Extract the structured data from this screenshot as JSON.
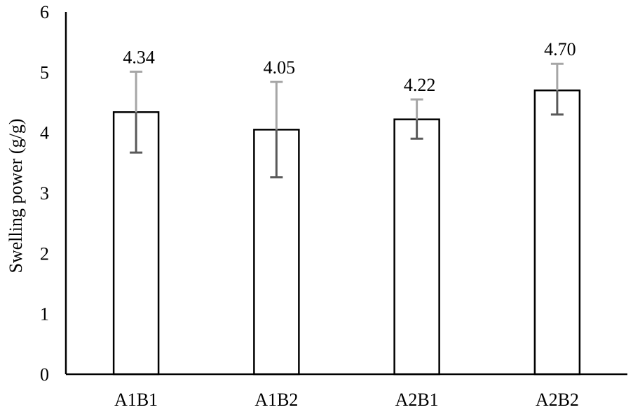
{
  "chart_data": {
    "type": "bar",
    "title": "",
    "xlabel": "",
    "ylabel": "Swelling power (g/g)",
    "ylim": [
      0,
      6
    ],
    "yticks": [
      "0",
      "1",
      "2",
      "3",
      "4",
      "5",
      "6"
    ],
    "grid": false,
    "legend": "none",
    "categories": [
      "A1B1",
      "A1B2",
      "A2B1",
      "A2B2"
    ],
    "values": [
      4.34,
      4.05,
      4.22,
      4.7
    ],
    "value_labels": [
      "4.34",
      "4.05",
      "4.22",
      "4.70"
    ],
    "error_bars": [
      {
        "low": 3.67,
        "high": 5.01
      },
      {
        "low": 3.26,
        "high": 4.84
      },
      {
        "low": 3.9,
        "high": 4.55
      },
      {
        "low": 4.3,
        "high": 5.14
      }
    ],
    "colors": {
      "bar_fill": "#ffffff",
      "bar_stroke": "#000000",
      "axis": "#000000",
      "error_bar": "#595959",
      "error_bar_light": "#a6a6a6"
    }
  }
}
